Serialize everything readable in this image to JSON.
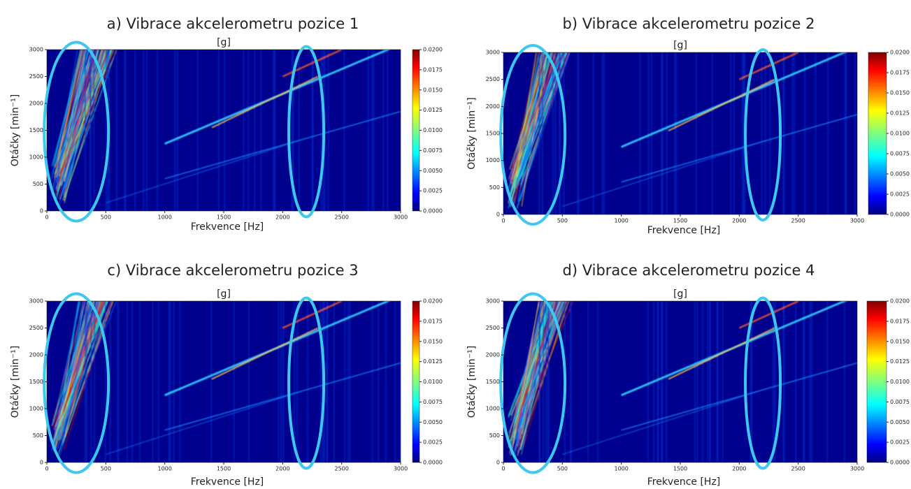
{
  "chart_data": [
    {
      "type": "heatmap",
      "title": "a) Vibrace akcelerometru pozice 1",
      "colorbar_label": "[g]",
      "xlabel": "Frekvence [Hz]",
      "ylabel": "Otáčky [min⁻¹]",
      "colormap": "jet",
      "xlim": [
        0,
        3000
      ],
      "ylim": [
        0,
        3000
      ],
      "xticks": [
        0,
        500,
        1000,
        1500,
        2000,
        2500,
        3000
      ],
      "yticks": [
        0,
        500,
        1000,
        1500,
        2000,
        2500,
        3000
      ],
      "clim": [
        0,
        0.02
      ],
      "cticks": [
        {
          "value": 0,
          "label": "0.0000"
        },
        {
          "value": 0.0025,
          "label": "0.0025"
        },
        {
          "value": 0.005,
          "label": "0.0050"
        },
        {
          "value": 0.0075,
          "label": "0.0075"
        },
        {
          "value": 0.01,
          "label": "0.0100"
        },
        {
          "value": 0.0125,
          "label": "0.0125"
        },
        {
          "value": 0.015,
          "label": "0.0150"
        },
        {
          "value": 0.0175,
          "label": "0.0175"
        },
        {
          "value": 0.02,
          "label": "0.0200"
        }
      ]
    },
    {
      "type": "heatmap",
      "title": "b) Vibrace akcelerometru pozice 2",
      "colorbar_label": "[g]",
      "xlabel": "Frekvence [Hz]",
      "ylabel": "Otáčky [min⁻¹]",
      "colormap": "jet",
      "xlim": [
        0,
        3000
      ],
      "ylim": [
        0,
        3000
      ],
      "xticks": [
        0,
        500,
        1000,
        1500,
        2000,
        2500,
        3000
      ],
      "yticks": [
        0,
        500,
        1000,
        1500,
        2000,
        2500,
        3000
      ],
      "clim": [
        0,
        0.02
      ],
      "cticks": [
        {
          "value": 0,
          "label": "0.0000"
        },
        {
          "value": 0.0025,
          "label": "0.0025"
        },
        {
          "value": 0.005,
          "label": "0.0050"
        },
        {
          "value": 0.0075,
          "label": "0.0075"
        },
        {
          "value": 0.01,
          "label": "0.0100"
        },
        {
          "value": 0.0125,
          "label": "0.0125"
        },
        {
          "value": 0.015,
          "label": "0.0150"
        },
        {
          "value": 0.0175,
          "label": "0.0175"
        },
        {
          "value": 0.02,
          "label": "0.0200"
        }
      ]
    },
    {
      "type": "heatmap",
      "title": "c) Vibrace akcelerometru pozice 3",
      "colorbar_label": "[g]",
      "xlabel": "Frekvence [Hz]",
      "ylabel": "Otáčky [min⁻¹]",
      "colormap": "jet",
      "xlim": [
        0,
        3000
      ],
      "ylim": [
        0,
        3000
      ],
      "xticks": [
        0,
        500,
        1000,
        1500,
        2000,
        2500,
        3000
      ],
      "yticks": [
        0,
        500,
        1000,
        1500,
        2000,
        2500,
        3000
      ],
      "clim": [
        0,
        0.02
      ],
      "cticks": [
        {
          "value": 0,
          "label": "0.0000"
        },
        {
          "value": 0.0025,
          "label": "0.0025"
        },
        {
          "value": 0.005,
          "label": "0.0050"
        },
        {
          "value": 0.0075,
          "label": "0.0075"
        },
        {
          "value": 0.01,
          "label": "0.0100"
        },
        {
          "value": 0.0125,
          "label": "0.0125"
        },
        {
          "value": 0.015,
          "label": "0.0150"
        },
        {
          "value": 0.0175,
          "label": "0.0175"
        },
        {
          "value": 0.02,
          "label": "0.0200"
        }
      ]
    },
    {
      "type": "heatmap",
      "title": "d) Vibrace akcelerometru pozice 4",
      "colorbar_label": "[g]",
      "xlabel": "Frekvence [Hz]",
      "ylabel": "Otáčky [min⁻¹]",
      "colormap": "jet",
      "xlim": [
        0,
        3000
      ],
      "ylim": [
        0,
        3000
      ],
      "xticks": [
        0,
        500,
        1000,
        1500,
        2000,
        2500,
        3000
      ],
      "yticks": [
        0,
        500,
        1000,
        1500,
        2000,
        2500,
        3000
      ],
      "clim": [
        0,
        0.02
      ],
      "cticks": [
        {
          "value": 0,
          "label": "0.0000"
        },
        {
          "value": 0.0025,
          "label": "0.0025"
        },
        {
          "value": 0.005,
          "label": "0.0050"
        },
        {
          "value": 0.0075,
          "label": "0.0075"
        },
        {
          "value": 0.01,
          "label": "0.0100"
        },
        {
          "value": 0.0125,
          "label": "0.0125"
        },
        {
          "value": 0.015,
          "label": "0.0150"
        },
        {
          "value": 0.0175,
          "label": "0.0175"
        },
        {
          "value": 0.02,
          "label": "0.0200"
        }
      ]
    }
  ]
}
